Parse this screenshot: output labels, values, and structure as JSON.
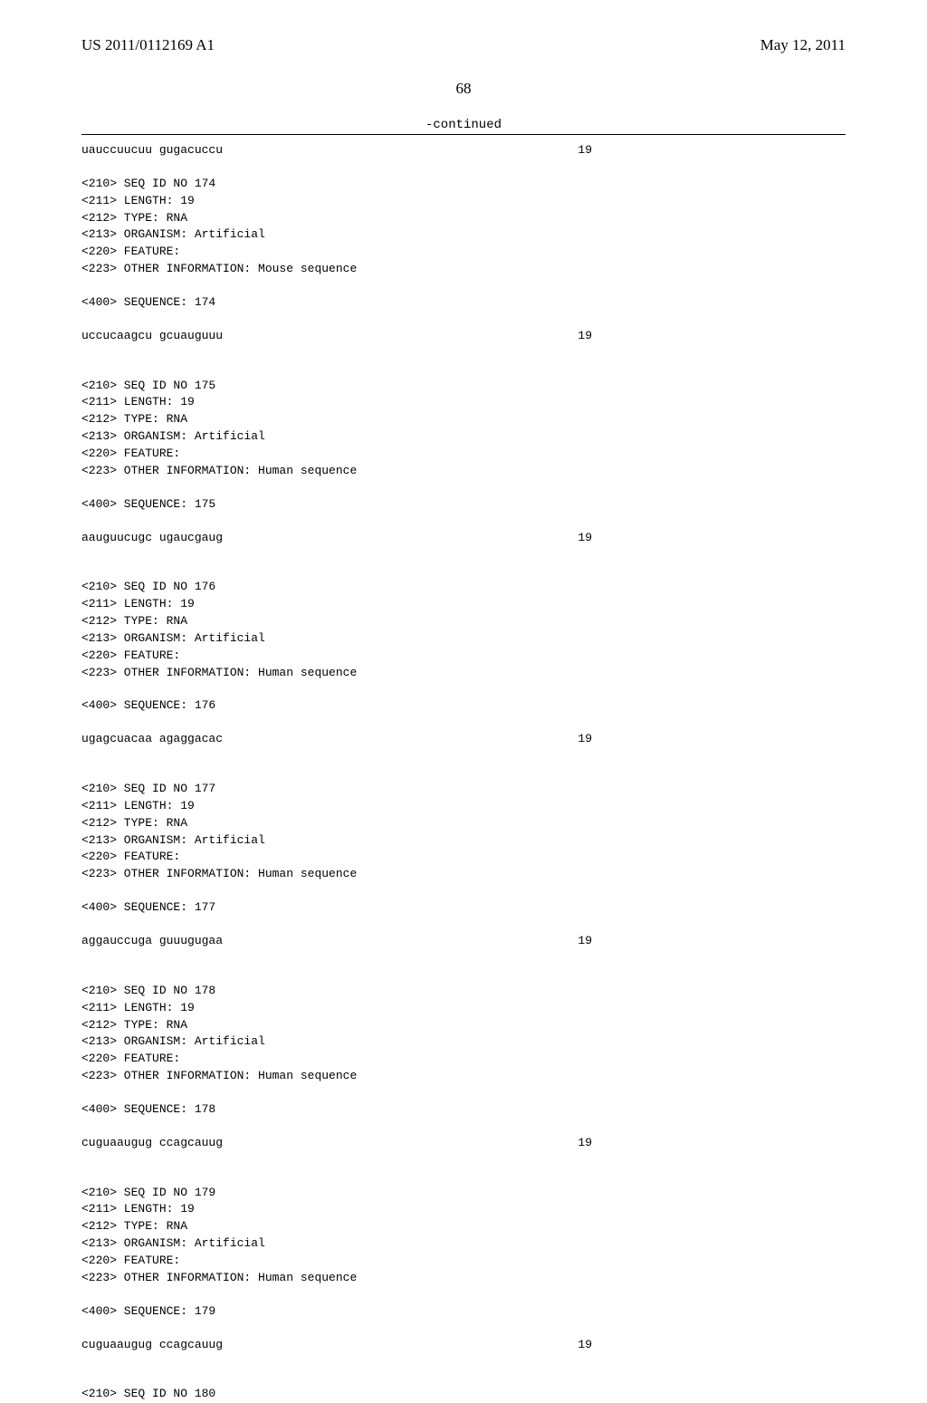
{
  "header": {
    "left": "US 2011/0112169 A1",
    "right": "May 12, 2011"
  },
  "page_number": "68",
  "continued_label": "-continued",
  "top_sequence": {
    "seq": "uauccuucuu gugacuccu",
    "len": "19"
  },
  "entries": [
    {
      "id": "<210> SEQ ID NO 174",
      "length": "<211> LENGTH: 19",
      "type": "<212> TYPE: RNA",
      "organism": "<213> ORGANISM: Artificial",
      "feature": "<220> FEATURE:",
      "other": "<223> OTHER INFORMATION: Mouse sequence",
      "seqlabel": "<400> SEQUENCE: 174",
      "seq": "uccucaagcu gcuauguuu",
      "len": "19"
    },
    {
      "id": "<210> SEQ ID NO 175",
      "length": "<211> LENGTH: 19",
      "type": "<212> TYPE: RNA",
      "organism": "<213> ORGANISM: Artificial",
      "feature": "<220> FEATURE:",
      "other": "<223> OTHER INFORMATION: Human sequence",
      "seqlabel": "<400> SEQUENCE: 175",
      "seq": "aauguucugc ugaucgaug",
      "len": "19"
    },
    {
      "id": "<210> SEQ ID NO 176",
      "length": "<211> LENGTH: 19",
      "type": "<212> TYPE: RNA",
      "organism": "<213> ORGANISM: Artificial",
      "feature": "<220> FEATURE:",
      "other": "<223> OTHER INFORMATION: Human sequence",
      "seqlabel": "<400> SEQUENCE: 176",
      "seq": "ugagcuacaa agaggacac",
      "len": "19"
    },
    {
      "id": "<210> SEQ ID NO 177",
      "length": "<211> LENGTH: 19",
      "type": "<212> TYPE: RNA",
      "organism": "<213> ORGANISM: Artificial",
      "feature": "<220> FEATURE:",
      "other": "<223> OTHER INFORMATION: Human sequence",
      "seqlabel": "<400> SEQUENCE: 177",
      "seq": "aggauccuga guuugugaa",
      "len": "19"
    },
    {
      "id": "<210> SEQ ID NO 178",
      "length": "<211> LENGTH: 19",
      "type": "<212> TYPE: RNA",
      "organism": "<213> ORGANISM: Artificial",
      "feature": "<220> FEATURE:",
      "other": "<223> OTHER INFORMATION: Human sequence",
      "seqlabel": "<400> SEQUENCE: 178",
      "seq": "cuguaaugug ccagcauug",
      "len": "19"
    },
    {
      "id": "<210> SEQ ID NO 179",
      "length": "<211> LENGTH: 19",
      "type": "<212> TYPE: RNA",
      "organism": "<213> ORGANISM: Artificial",
      "feature": "<220> FEATURE:",
      "other": "<223> OTHER INFORMATION: Human sequence",
      "seqlabel": "<400> SEQUENCE: 179",
      "seq": "cuguaaugug ccagcauug",
      "len": "19"
    }
  ],
  "trailing": "<210> SEQ ID NO 180"
}
